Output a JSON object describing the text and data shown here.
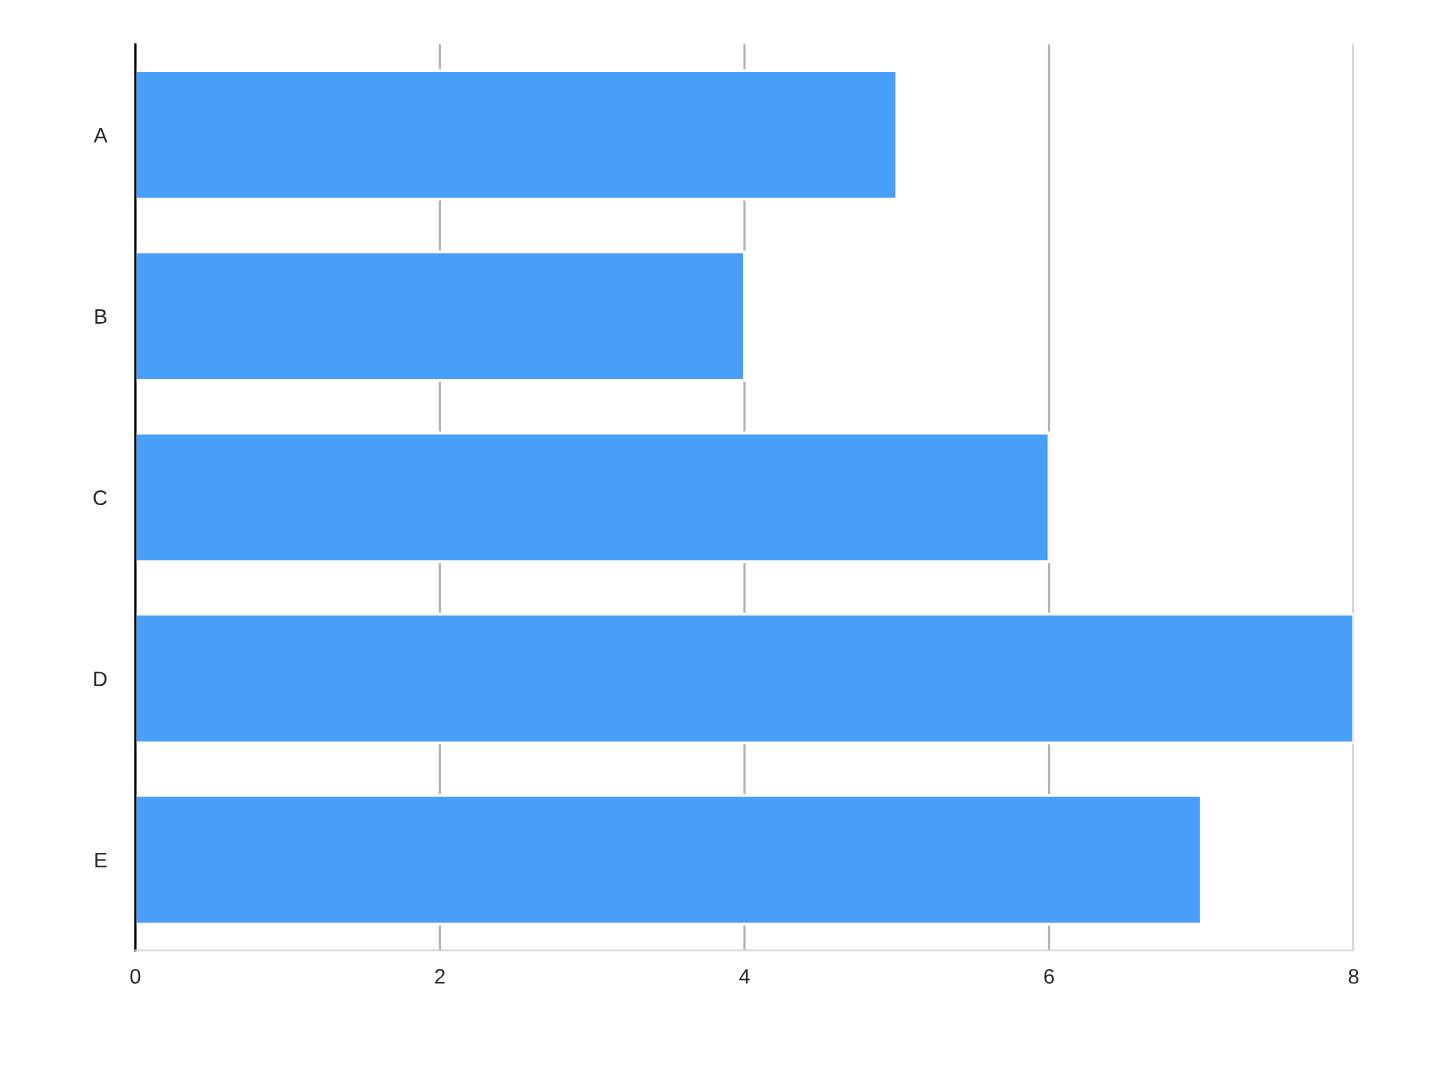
{
  "chart_data": {
    "type": "bar",
    "orientation": "horizontal",
    "categories": [
      "A",
      "B",
      "C",
      "D",
      "E"
    ],
    "values": [
      5,
      4,
      6,
      8,
      7
    ],
    "color": "#479ff8",
    "xlim": [
      0,
      8
    ],
    "xticks": [
      0,
      2,
      4,
      6,
      8
    ],
    "grid": "x",
    "legend": false
  }
}
